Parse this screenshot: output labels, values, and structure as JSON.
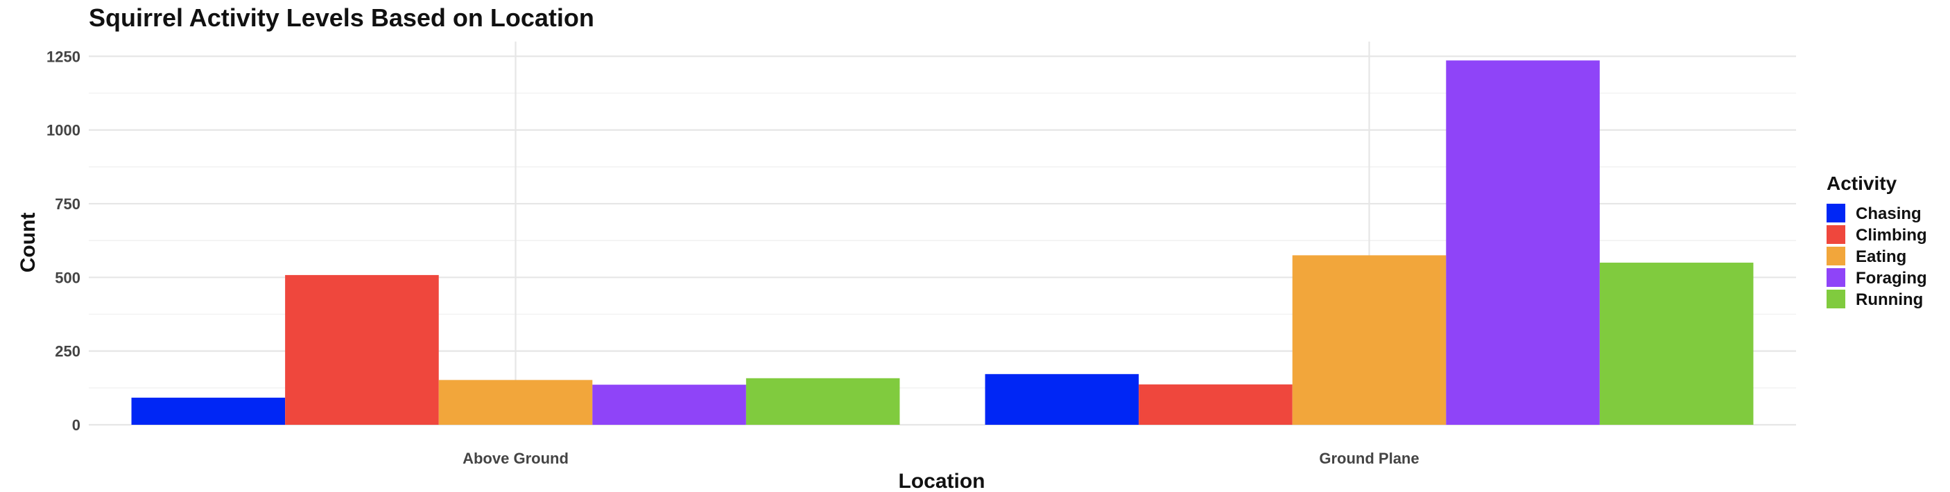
{
  "chart_data": {
    "type": "bar",
    "title": "Squirrel Activity Levels Based on Location",
    "xlabel": "Location",
    "ylabel": "Count",
    "categories": [
      "Above Ground",
      "Ground Plane"
    ],
    "series": [
      {
        "name": "Chasing",
        "color": "#0026f5",
        "values": [
          92,
          172
        ]
      },
      {
        "name": "Climbing",
        "color": "#ef473d",
        "values": [
          508,
          137
        ]
      },
      {
        "name": "Eating",
        "color": "#f2a63b",
        "values": [
          152,
          575
        ]
      },
      {
        "name": "Foraging",
        "color": "#8f44f8",
        "values": [
          136,
          1236
        ]
      },
      {
        "name": "Running",
        "color": "#80cb3e",
        "values": [
          158,
          550
        ]
      }
    ],
    "ylim": [
      0,
      1300
    ],
    "yticks": [
      0,
      250,
      500,
      750,
      1000,
      1250
    ],
    "grid": true,
    "legend": {
      "title": "Activity",
      "position": "right"
    }
  }
}
